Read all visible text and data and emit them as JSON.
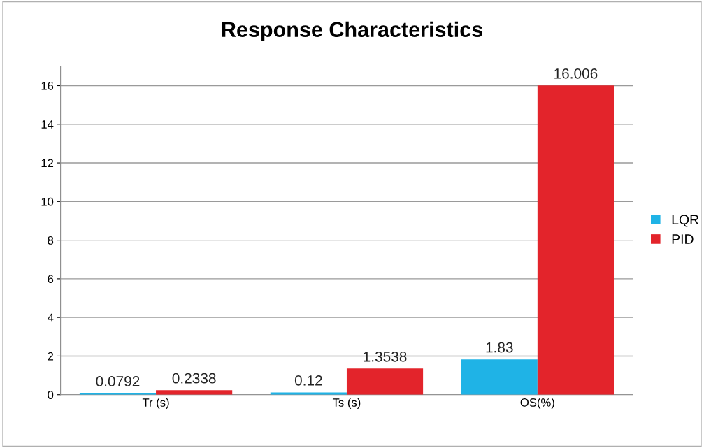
{
  "chart_data": {
    "type": "bar",
    "title": "Response Characteristics",
    "categories": [
      "Tr (s)",
      "Ts (s)",
      "OS(%)"
    ],
    "series": [
      {
        "name": "LQR",
        "color": "#1fb3e6",
        "values": [
          0.0792,
          0.12,
          1.83
        ]
      },
      {
        "name": "PID",
        "color": "#e3242b",
        "values": [
          0.2338,
          1.3538,
          16.006
        ]
      }
    ],
    "ylim": [
      0,
      17
    ],
    "yticks": [
      0,
      2,
      4,
      6,
      8,
      10,
      12,
      14,
      16
    ],
    "grid": "y",
    "legend": "right",
    "data_labels": true
  }
}
